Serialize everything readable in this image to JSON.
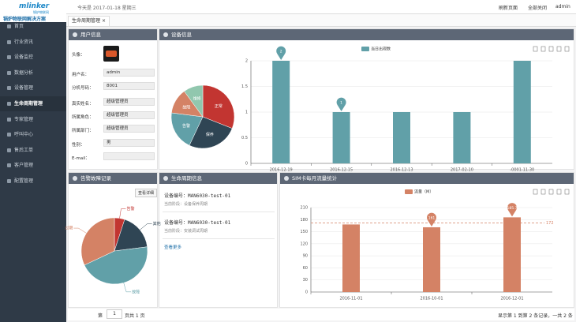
{
  "topbar": {
    "date": "今天是 2017-01-18 星期三",
    "refresh": "刷新页面",
    "close_all": "全部关闭",
    "user": "admin"
  },
  "sidebar": {
    "logo": "mlinker",
    "logo_sub": "锅炉物联网",
    "slogan": "锅炉物联网解决方案",
    "menu": [
      "首页",
      "行业资讯",
      "设备监控",
      "数据分析",
      "设备管理",
      "生命周期管理",
      "专家管理",
      "呼叫中心",
      "售后工单",
      "客户管理",
      "配置管理"
    ]
  },
  "tab": {
    "label": "生命周期管理",
    "close": "×"
  },
  "panels": {
    "user_info": "用户信息",
    "device_info": "设备信息",
    "alarm": "告警故障记录",
    "lifecycle": "生命周期信息",
    "sim": "SIM卡每月流量统计"
  },
  "user_info": {
    "fields": [
      {
        "label": "头像："
      },
      {
        "label": "用户名：",
        "value": "admin"
      },
      {
        "label": "分机号码：",
        "value": "8001"
      },
      {
        "label": "真实姓名：",
        "value": "超级管理员"
      },
      {
        "label": "所属角色：",
        "value": "超级管理员"
      },
      {
        "label": "所属部门：",
        "value": "超级管理员"
      },
      {
        "label": "性别：",
        "value": "男"
      },
      {
        "label": "E-mail："
      }
    ]
  },
  "alarm_button": "查看详细",
  "lifecycle": {
    "items": [
      {
        "device": "设备编号：MAN6030-test-01",
        "stage": "当前阶段：设备保养周期"
      },
      {
        "device": "设备编号：MAN6030-test-01",
        "stage": "当前阶段：安装调试周期"
      }
    ],
    "more": "查看更多"
  },
  "pagination": {
    "prefix": "第",
    "page": "1",
    "suffix": "页共 1 页",
    "summary": "显示第 1 到第 2 条记录，一共 2 条"
  },
  "chart_data": [
    {
      "type": "pie",
      "categories": [
        "正常",
        "保养",
        "告警",
        "故障",
        "维修"
      ],
      "values": [
        31,
        26,
        20,
        13,
        10
      ],
      "colors": [
        "#c23531",
        "#2f4554",
        "#61a0a8",
        "#d48265",
        "#91c7ae"
      ],
      "label_position": "inside"
    },
    {
      "type": "bar",
      "legend": "当日出现数",
      "categories": [
        "2016-12-19",
        "2016-12-15",
        "2016-12-13",
        "2017-02-10",
        "-0001-11-30"
      ],
      "values": [
        2,
        1,
        1,
        1,
        2
      ],
      "color": "#61a0a8",
      "ylim": [
        0,
        2
      ],
      "yticks": [
        0,
        0.5,
        1,
        1.5,
        2
      ],
      "grid": true
    },
    {
      "type": "pie",
      "categories": [
        "告警",
        "其他",
        "故障",
        "过期"
      ],
      "values": [
        5,
        18,
        45,
        32
      ],
      "colors": [
        "#c23531",
        "#2f4554",
        "#61a0a8",
        "#d48265"
      ],
      "label_position": "outside"
    },
    {
      "type": "bar",
      "legend": "流量（M）",
      "categories": [
        "2016-11-01",
        "2016-10-01",
        "2016-12-01"
      ],
      "values": [
        168,
        161,
        185.7
      ],
      "color": "#d48265",
      "ylim": [
        0,
        210
      ],
      "yticks": [
        0,
        30,
        60,
        90,
        120,
        150,
        180,
        210
      ],
      "grid": true,
      "average": 172
    }
  ]
}
